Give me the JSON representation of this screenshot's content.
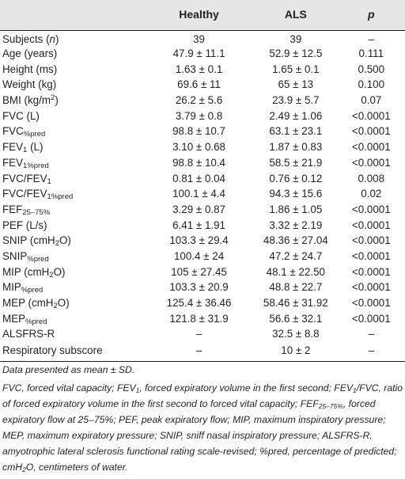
{
  "table": {
    "headers": {
      "name": "",
      "healthy": "Healthy",
      "als": "ALS",
      "p": "p"
    },
    "rows": [
      {
        "label": "Subjects (",
        "label_italic": "n",
        "label_after": ")",
        "healthy": "39",
        "als": "39",
        "p": "–"
      },
      {
        "label": "Age (years)",
        "healthy": "47.9 ± 11.1",
        "als": "52.9 ± 12.5",
        "p": "0.111"
      },
      {
        "label": "Height (ms)",
        "healthy": "1.63 ± 0.1",
        "als": "1.65 ± 0.1",
        "p": "0.500"
      },
      {
        "label": "Weight (kg)",
        "healthy": "69.6 ± 11",
        "als": "65 ± 13",
        "p": "0.100"
      },
      {
        "label": "BMI (kg/m",
        "label_sup": "2",
        "label_after": ")",
        "healthy": "26.2 ± 5.6",
        "als": "23.9 ± 5.7",
        "p": "0.07"
      },
      {
        "label": "FVC (L)",
        "healthy": "3.79 ± 0.8",
        "als": "2.49 ± 1.06",
        "p": "<0.0001"
      },
      {
        "label": "FVC",
        "label_sub": "%pred",
        "healthy": "98.8 ± 10.7",
        "als": "63.1 ± 23.1",
        "p": "<0.0001"
      },
      {
        "label": "FEV",
        "label_sub": "1",
        "label_after": " (L)",
        "healthy": "3.10 ± 0.68",
        "als": "1.87 ± 0.83",
        "p": "<0.0001"
      },
      {
        "label": "FEV",
        "label_sub": "1%pred",
        "healthy": "98.8 ± 10.4",
        "als": "58.5 ± 21.9",
        "p": "<0.0001"
      },
      {
        "label": "FVC/FEV",
        "label_sub": "1",
        "healthy": "0.81 ± 0.04",
        "als": "0.76 ± 0.12",
        "p": "0.008"
      },
      {
        "label": "FVC/FEV",
        "label_sub": "1%pred",
        "healthy": "100.1 ± 4.4",
        "als": "94.3 ± 15.6",
        "p": "0.02"
      },
      {
        "label": "FEF",
        "label_sub": "25–75%",
        "healthy": "3.29 ± 0.87",
        "als": "1.86 ± 1.05",
        "p": "<0.0001"
      },
      {
        "label": "PEF (L/s)",
        "healthy": "6.41 ± 1.91",
        "als": "3.32 ± 2.19",
        "p": "<0.0001"
      },
      {
        "label": "SNIP (cmH",
        "label_sub": "2",
        "label_after": "O)",
        "healthy": "103.3 ± 29.4",
        "als": "48.36 ± 27.04",
        "p": "<0.0001"
      },
      {
        "label": "SNIP",
        "label_sub": "%pred",
        "healthy": "100.4 ± 24",
        "als": "47.2 ± 24.7",
        "p": "<0.0001"
      },
      {
        "label": "MIP (cmH",
        "label_sub": "2",
        "label_after": "O)",
        "healthy": "105 ± 27.45",
        "als": "48.1 ± 22.50",
        "p": "<0.0001"
      },
      {
        "label": "MIP",
        "label_sub": "%pred",
        "healthy": "103.3 ± 20.9",
        "als": "48.8 ± 22.7",
        "p": "<0.0001"
      },
      {
        "label": "MEP (cmH",
        "label_sub": "2",
        "label_after": "O)",
        "healthy": "125.4 ± 36.46",
        "als": "58.46 ± 31.92",
        "p": "<0.0001"
      },
      {
        "label": "MEP",
        "label_sub": "%pred",
        "healthy": "121.8 ± 31.9",
        "als": "56.6 ± 32.1",
        "p": "<0.0001"
      },
      {
        "label": "ALSFRS-R",
        "healthy": "–",
        "als": "32.5 ± 8.8",
        "p": "–"
      },
      {
        "label": "Respiratory subscore",
        "healthy": "–",
        "als": "10 ± 2",
        "p": "–"
      }
    ]
  },
  "footnotes": {
    "note1": "Data presented as mean ± SD.",
    "note2": [
      {
        "t": "FVC, forced vital capacity; FEV"
      },
      {
        "t": "1",
        "sub": true
      },
      {
        "t": ", forced expiratory volume in the first second; FEV"
      },
      {
        "t": "1",
        "sub": true
      },
      {
        "t": "/FVC, ratio of forced expiratory volume in the first second to forced vital capacity; FEF"
      },
      {
        "t": "25–75%",
        "sub": true
      },
      {
        "t": ", forced expiratory flow at 25–75%; PEF, peak expiratory flow; MIP, maximum inspiratory pressure; MEP, maximum expiratory pressure; SNIP, sniff nasal inspiratory pressure; ALSFRS-R, amyotrophic lateral sclerosis functional rating scale-revised; %pred, percentage of predicted; cmH"
      },
      {
        "t": "2",
        "sub": true
      },
      {
        "t": "O, centimeters of water."
      }
    ]
  }
}
